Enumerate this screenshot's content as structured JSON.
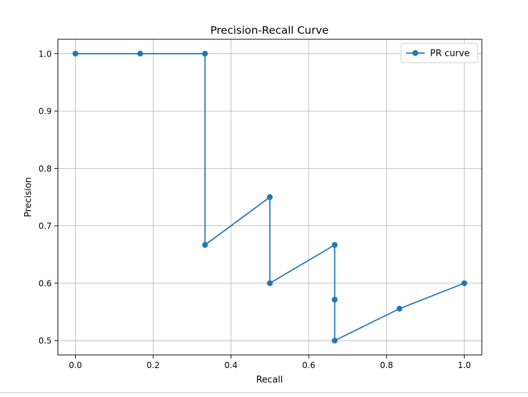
{
  "chart_data": {
    "type": "line",
    "title": "Precision-Recall Curve",
    "xlabel": "Recall",
    "ylabel": "Precision",
    "xlim": [
      -0.045,
      1.045
    ],
    "ylim": [
      0.475,
      1.025
    ],
    "xticks": [
      0.0,
      0.2,
      0.4,
      0.6,
      0.8,
      1.0
    ],
    "xtick_labels": [
      "0.0",
      "0.2",
      "0.4",
      "0.6",
      "0.8",
      "1.0"
    ],
    "yticks": [
      0.5,
      0.6,
      0.7,
      0.8,
      0.9,
      1.0
    ],
    "ytick_labels": [
      "0.5",
      "0.6",
      "0.7",
      "0.8",
      "0.9",
      "1.0"
    ],
    "grid": true,
    "legend_position": "top-right",
    "series": [
      {
        "name": "PR curve",
        "color": "#1f77b4",
        "marker": "circle",
        "x": [
          0.0,
          0.1667,
          0.3333,
          0.3333,
          0.5,
          0.5,
          0.6667,
          0.6667,
          0.6667,
          0.8333,
          1.0
        ],
        "y": [
          1.0,
          1.0,
          1.0,
          0.6667,
          0.75,
          0.6,
          0.6667,
          0.5714,
          0.5,
          0.5556,
          0.6
        ]
      }
    ]
  }
}
